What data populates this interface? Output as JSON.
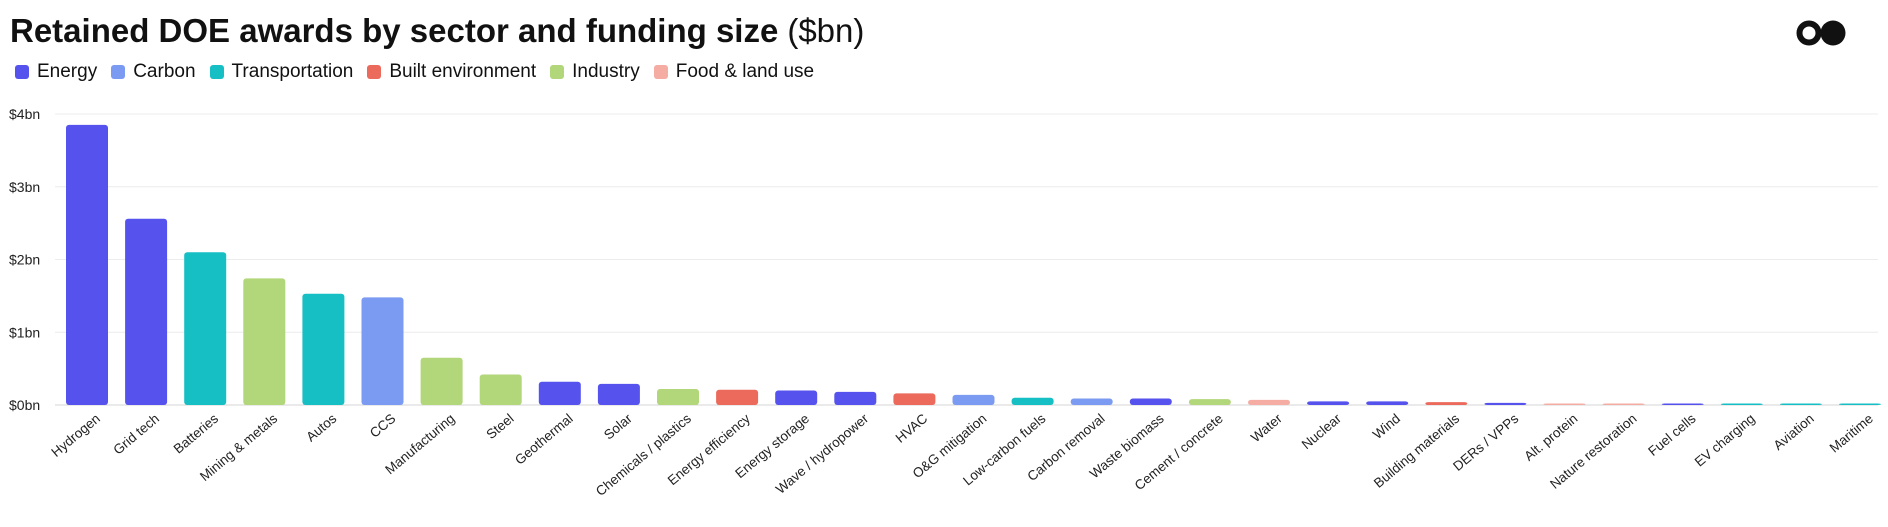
{
  "header": {
    "title": "Retained DOE awards by sector and funding size",
    "unit": "($bn)",
    "logo_icon": "two-circles-logo-icon"
  },
  "legend": [
    {
      "label": "Energy",
      "color": "#5552EE"
    },
    {
      "label": "Carbon",
      "color": "#7B9BF2"
    },
    {
      "label": "Transportation",
      "color": "#16BFC4"
    },
    {
      "label": "Built environment",
      "color": "#EB6A5C"
    },
    {
      "label": "Industry",
      "color": "#B2D67A"
    },
    {
      "label": "Food & land use",
      "color": "#F4ACA3"
    }
  ],
  "chart_data": {
    "type": "bar",
    "title": "Retained DOE awards by sector and funding size ($bn)",
    "xlabel": "",
    "ylabel": "",
    "ylim": [
      0,
      4
    ],
    "yticks": [
      {
        "value": 0,
        "label": "$0bn"
      },
      {
        "value": 1,
        "label": "$1bn"
      },
      {
        "value": 2,
        "label": "$2bn"
      },
      {
        "value": 3,
        "label": "$3bn"
      },
      {
        "value": 4,
        "label": "$4bn"
      }
    ],
    "grid": true,
    "legend_position": "top-left",
    "categories": [
      "Hydrogen",
      "Grid tech",
      "Batteries",
      "Mining & metals",
      "Autos",
      "CCS",
      "Manufacturing",
      "Steel",
      "Geothermal",
      "Solar",
      "Chemicals / plastics",
      "Energy efficiency",
      "Energy storage",
      "Wave / hydropower",
      "HVAC",
      "O&G mitigation",
      "Low-carbon fuels",
      "Carbon removal",
      "Waste biomass",
      "Cement / concrete",
      "Water",
      "Nuclear",
      "Wind",
      "Building materials",
      "DERs / VPPs",
      "Alt. protein",
      "Nature restoration",
      "Fuel cells",
      "EV charging",
      "Aviation",
      "Maritime"
    ],
    "values": [
      3.85,
      2.56,
      2.1,
      1.74,
      1.53,
      1.48,
      0.65,
      0.42,
      0.32,
      0.29,
      0.22,
      0.21,
      0.2,
      0.18,
      0.16,
      0.14,
      0.1,
      0.09,
      0.09,
      0.08,
      0.07,
      0.05,
      0.05,
      0.04,
      0.03,
      0.02,
      0.02,
      0.02,
      0.01,
      0.01,
      0.01
    ],
    "sectors": [
      "Energy",
      "Energy",
      "Transportation",
      "Industry",
      "Transportation",
      "Carbon",
      "Industry",
      "Industry",
      "Energy",
      "Energy",
      "Industry",
      "Built environment",
      "Energy",
      "Energy",
      "Built environment",
      "Carbon",
      "Transportation",
      "Carbon",
      "Energy",
      "Industry",
      "Food & land use",
      "Energy",
      "Energy",
      "Built environment",
      "Energy",
      "Food & land use",
      "Food & land use",
      "Energy",
      "Transportation",
      "Transportation",
      "Transportation"
    ]
  }
}
